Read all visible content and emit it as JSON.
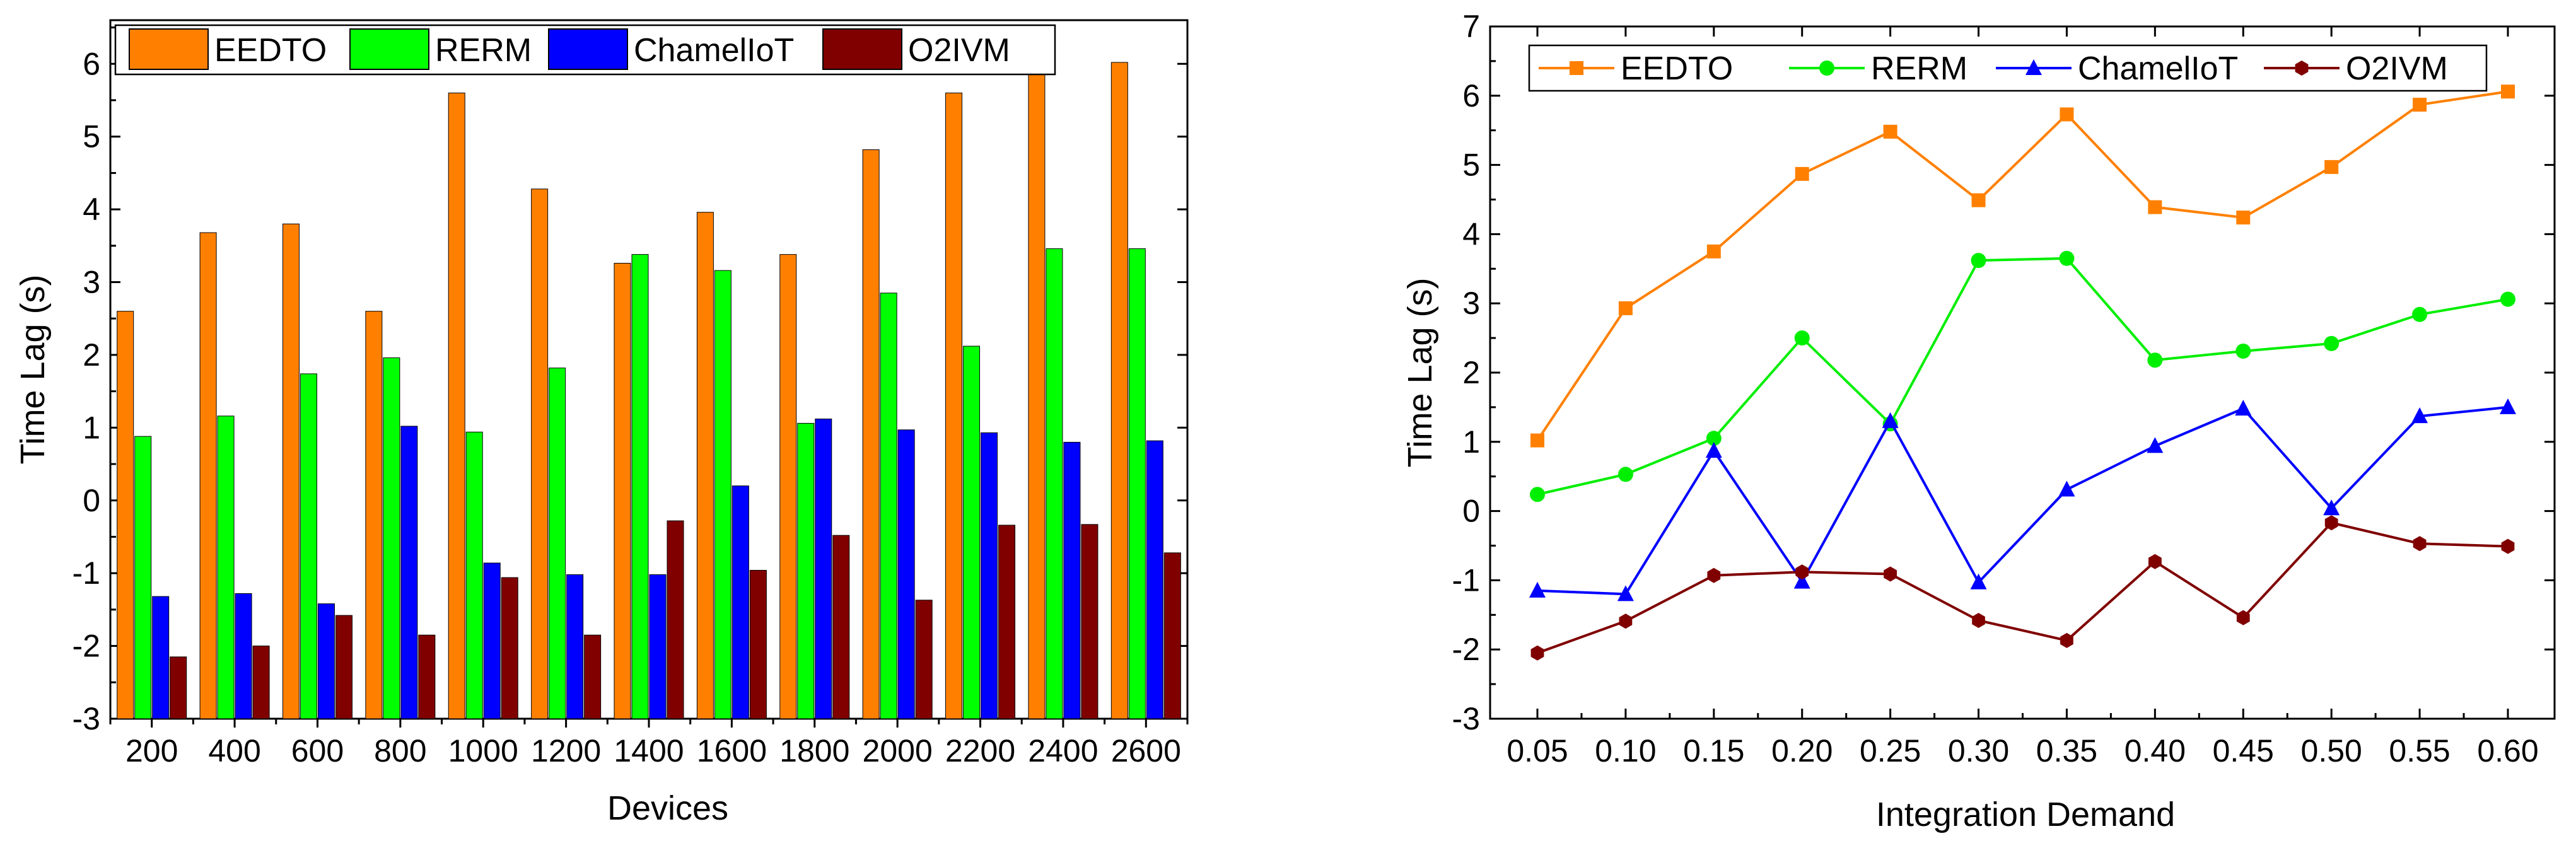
{
  "chart_data": [
    {
      "type": "bar",
      "title": "",
      "xlabel": "Devices",
      "ylabel": "Time Lag (s)",
      "ylim": [
        -3,
        6.6
      ],
      "yticks": [
        -3,
        -2,
        -1,
        0,
        1,
        2,
        3,
        4,
        5,
        6
      ],
      "categories": [
        "200",
        "400",
        "600",
        "800",
        "1000",
        "1200",
        "1400",
        "1600",
        "1800",
        "2000",
        "2200",
        "2400",
        "2600"
      ],
      "legend_position": "top",
      "series": [
        {
          "name": "EEDTO",
          "color": "#FF8000",
          "values": [
            2.6,
            3.68,
            3.8,
            2.6,
            5.6,
            4.28,
            3.26,
            3.96,
            3.38,
            4.82,
            5.6,
            5.92,
            6.02
          ]
        },
        {
          "name": "RERM",
          "color": "#00FF00",
          "values": [
            0.88,
            1.16,
            1.74,
            1.96,
            0.94,
            1.82,
            3.38,
            3.16,
            1.06,
            2.85,
            2.12,
            3.46,
            3.46
          ]
        },
        {
          "name": "ChamelIoT",
          "color": "#0000FF",
          "values": [
            -1.32,
            -1.28,
            -1.42,
            1.02,
            -0.86,
            -1.02,
            -1.02,
            0.2,
            1.12,
            0.97,
            0.93,
            0.8,
            0.82
          ]
        },
        {
          "name": "O2IVM",
          "color": "#800000",
          "values": [
            -2.15,
            -2.0,
            -1.58,
            -1.85,
            -1.06,
            -1.85,
            -0.28,
            -0.96,
            -0.48,
            -1.37,
            -0.34,
            -0.33,
            -0.72
          ]
        }
      ]
    },
    {
      "type": "line",
      "title": "",
      "xlabel": "Integration Demand",
      "ylabel": "Time Lag (s)",
      "ylim": [
        -3,
        7
      ],
      "yticks": [
        -3,
        -2,
        -1,
        0,
        1,
        2,
        3,
        4,
        5,
        6,
        7
      ],
      "categories": [
        "0.05",
        "0.10",
        "0.15",
        "0.20",
        "0.25",
        "0.30",
        "0.35",
        "0.40",
        "0.45",
        "0.50",
        "0.55",
        "0.60"
      ],
      "legend_position": "top",
      "series": [
        {
          "name": "EEDTO",
          "color": "#FF8000",
          "marker": "square",
          "values": [
            1.02,
            2.93,
            3.75,
            4.87,
            5.48,
            4.49,
            5.73,
            4.39,
            4.24,
            4.97,
            5.87,
            6.06
          ]
        },
        {
          "name": "RERM",
          "color": "#00EE00",
          "marker": "circle",
          "values": [
            0.24,
            0.53,
            1.05,
            2.5,
            1.26,
            3.62,
            3.65,
            2.18,
            2.31,
            2.42,
            2.84,
            3.06
          ]
        },
        {
          "name": "ChamelIoT",
          "color": "#0000FF",
          "marker": "triangle",
          "values": [
            -1.15,
            -1.2,
            0.87,
            -1.02,
            1.3,
            -1.03,
            0.31,
            0.94,
            1.48,
            0.04,
            1.37,
            1.5
          ]
        },
        {
          "name": "O2IVM",
          "color": "#800000",
          "marker": "hexagon",
          "values": [
            -2.05,
            -1.59,
            -0.93,
            -0.88,
            -0.91,
            -1.58,
            -1.87,
            -0.73,
            -1.54,
            -0.17,
            -0.47,
            -0.51
          ]
        }
      ]
    }
  ]
}
